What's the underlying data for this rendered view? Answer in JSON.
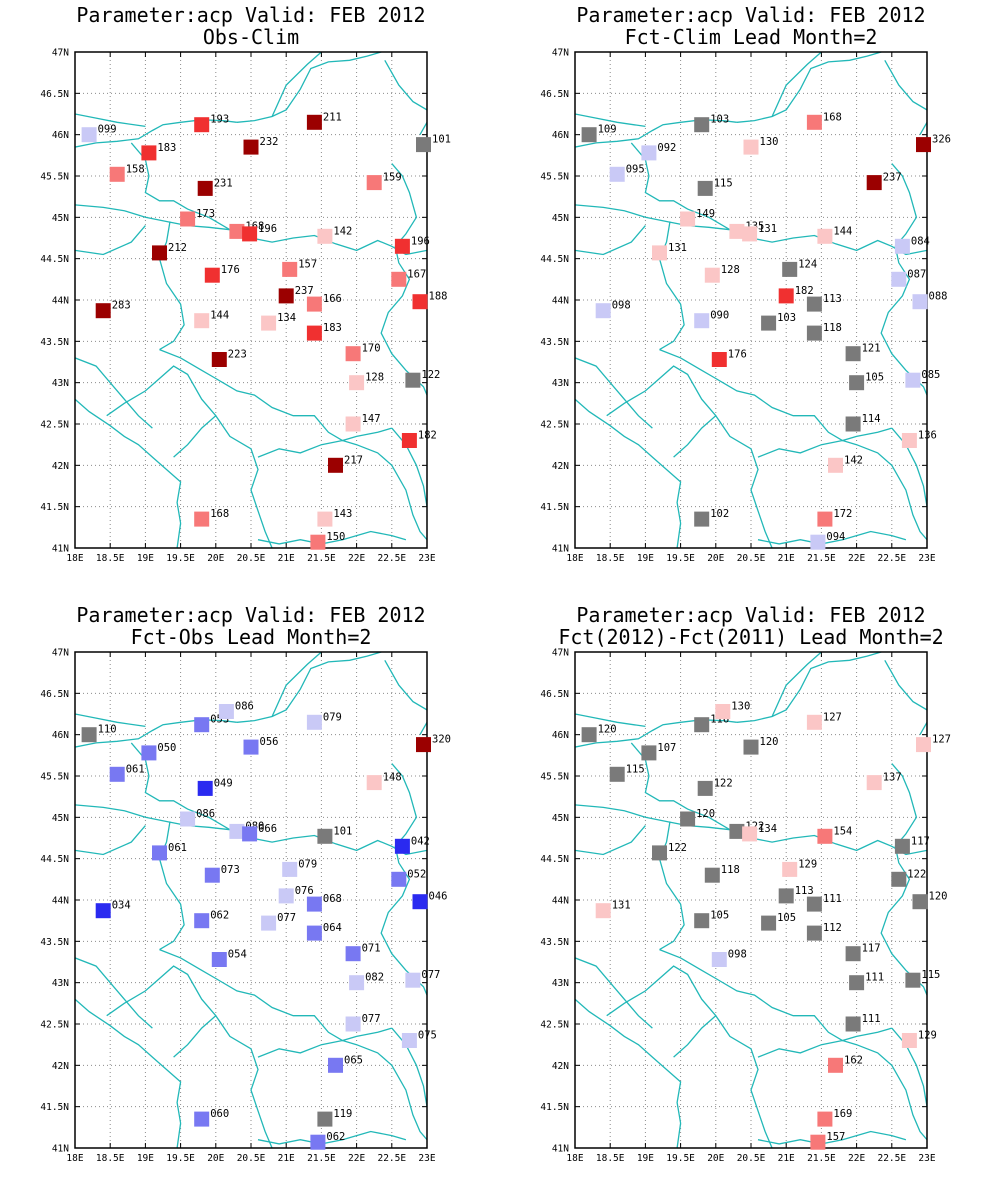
{
  "colors": {
    "coast": "#22b8b8",
    "grid": "#8c8c8c",
    "gray": "#7a7a7a",
    "dark_red": "#9b0000",
    "red": "#f03030",
    "mid_red": "#f77878",
    "light_red": "#fbc6c6",
    "light_blue": "#c9c9f6",
    "mid_blue": "#7878f2",
    "blue": "#2a2af0"
  },
  "axes": {
    "lon_ticks": [
      "18E",
      "18.5E",
      "19E",
      "19.5E",
      "20E",
      "20.5E",
      "21E",
      "21.5E",
      "22E",
      "22.5E",
      "23E"
    ],
    "lat_ticks": [
      "41N",
      "41.5N",
      "42N",
      "42.5N",
      "43N",
      "43.5N",
      "44N",
      "44.5N",
      "45N",
      "45.5N",
      "46N",
      "46.5N",
      "47N"
    ],
    "lon_range": [
      18,
      23
    ],
    "lat_range": [
      41,
      47
    ]
  },
  "panels": [
    {
      "title1": "Parameter:acp Valid: FEB 2012",
      "title2": "Obs-Clim",
      "stations": [
        {
          "lon": 18.2,
          "lat": 46.0,
          "label": "099",
          "color": "light_blue"
        },
        {
          "lon": 19.8,
          "lat": 46.12,
          "label": "193",
          "color": "red"
        },
        {
          "lon": 21.4,
          "lat": 46.15,
          "label": "211",
          "color": "dark_red"
        },
        {
          "lon": 22.95,
          "lat": 45.88,
          "label": "101",
          "color": "gray"
        },
        {
          "lon": 19.05,
          "lat": 45.78,
          "label": "183",
          "color": "red"
        },
        {
          "lon": 20.5,
          "lat": 45.85,
          "label": "232",
          "color": "dark_red"
        },
        {
          "lon": 18.6,
          "lat": 45.52,
          "label": "158",
          "color": "mid_red"
        },
        {
          "lon": 19.85,
          "lat": 45.35,
          "label": "231",
          "color": "dark_red"
        },
        {
          "lon": 22.25,
          "lat": 45.42,
          "label": "159",
          "color": "mid_red"
        },
        {
          "lon": 19.6,
          "lat": 44.98,
          "label": "173",
          "color": "mid_red"
        },
        {
          "lon": 20.3,
          "lat": 44.83,
          "label": "168",
          "color": "mid_red"
        },
        {
          "lon": 20.48,
          "lat": 44.8,
          "label": "196",
          "color": "red"
        },
        {
          "lon": 21.55,
          "lat": 44.77,
          "label": "142",
          "color": "light_red"
        },
        {
          "lon": 22.65,
          "lat": 44.65,
          "label": "196",
          "color": "red"
        },
        {
          "lon": 19.2,
          "lat": 44.57,
          "label": "212",
          "color": "dark_red"
        },
        {
          "lon": 19.95,
          "lat": 44.3,
          "label": "176",
          "color": "red"
        },
        {
          "lon": 21.05,
          "lat": 44.37,
          "label": "157",
          "color": "mid_red"
        },
        {
          "lon": 22.6,
          "lat": 44.25,
          "label": "167",
          "color": "mid_red"
        },
        {
          "lon": 21.0,
          "lat": 44.05,
          "label": "237",
          "color": "dark_red"
        },
        {
          "lon": 21.4,
          "lat": 43.95,
          "label": "166",
          "color": "mid_red"
        },
        {
          "lon": 22.9,
          "lat": 43.98,
          "label": "188",
          "color": "red"
        },
        {
          "lon": 18.4,
          "lat": 43.87,
          "label": "283",
          "color": "dark_red"
        },
        {
          "lon": 19.8,
          "lat": 43.75,
          "label": "144",
          "color": "light_red"
        },
        {
          "lon": 20.75,
          "lat": 43.72,
          "label": "134",
          "color": "light_red"
        },
        {
          "lon": 21.4,
          "lat": 43.6,
          "label": "183",
          "color": "red"
        },
        {
          "lon": 21.95,
          "lat": 43.35,
          "label": "170",
          "color": "mid_red"
        },
        {
          "lon": 20.05,
          "lat": 43.28,
          "label": "223",
          "color": "dark_red"
        },
        {
          "lon": 22.0,
          "lat": 43.0,
          "label": "128",
          "color": "light_red"
        },
        {
          "lon": 22.8,
          "lat": 43.03,
          "label": "122",
          "color": "gray"
        },
        {
          "lon": 21.95,
          "lat": 42.5,
          "label": "147",
          "color": "light_red"
        },
        {
          "lon": 22.75,
          "lat": 42.3,
          "label": "182",
          "color": "red"
        },
        {
          "lon": 21.7,
          "lat": 42.0,
          "label": "217",
          "color": "dark_red"
        },
        {
          "lon": 19.8,
          "lat": 41.35,
          "label": "168",
          "color": "mid_red"
        },
        {
          "lon": 21.55,
          "lat": 41.35,
          "label": "143",
          "color": "light_red"
        },
        {
          "lon": 21.45,
          "lat": 41.07,
          "label": "150",
          "color": "mid_red"
        }
      ]
    },
    {
      "title1": "Parameter:acp Valid: FEB 2012",
      "title2": "Fct-Clim Lead Month=2",
      "stations": [
        {
          "lon": 18.2,
          "lat": 46.0,
          "label": "109",
          "color": "gray"
        },
        {
          "lon": 19.8,
          "lat": 46.12,
          "label": "103",
          "color": "gray"
        },
        {
          "lon": 21.4,
          "lat": 46.15,
          "label": "168",
          "color": "mid_red"
        },
        {
          "lon": 22.95,
          "lat": 45.88,
          "label": "326",
          "color": "dark_red"
        },
        {
          "lon": 19.05,
          "lat": 45.78,
          "label": "092",
          "color": "light_blue"
        },
        {
          "lon": 20.5,
          "lat": 45.85,
          "label": "130",
          "color": "light_red"
        },
        {
          "lon": 18.6,
          "lat": 45.52,
          "label": "095",
          "color": "light_blue"
        },
        {
          "lon": 19.85,
          "lat": 45.35,
          "label": "115",
          "color": "gray"
        },
        {
          "lon": 22.25,
          "lat": 45.42,
          "label": "237",
          "color": "dark_red"
        },
        {
          "lon": 19.6,
          "lat": 44.98,
          "label": "149",
          "color": "light_red"
        },
        {
          "lon": 20.3,
          "lat": 44.83,
          "label": "135",
          "color": "light_red"
        },
        {
          "lon": 20.48,
          "lat": 44.8,
          "label": "131",
          "color": "light_red"
        },
        {
          "lon": 21.55,
          "lat": 44.77,
          "label": "144",
          "color": "light_red"
        },
        {
          "lon": 22.65,
          "lat": 44.65,
          "label": "084",
          "color": "light_blue"
        },
        {
          "lon": 19.2,
          "lat": 44.57,
          "label": "131",
          "color": "light_red"
        },
        {
          "lon": 19.95,
          "lat": 44.3,
          "label": "128",
          "color": "light_red"
        },
        {
          "lon": 21.05,
          "lat": 44.37,
          "label": "124",
          "color": "gray"
        },
        {
          "lon": 22.6,
          "lat": 44.25,
          "label": "087",
          "color": "light_blue"
        },
        {
          "lon": 21.0,
          "lat": 44.05,
          "label": "182",
          "color": "red"
        },
        {
          "lon": 21.4,
          "lat": 43.95,
          "label": "113",
          "color": "gray"
        },
        {
          "lon": 22.9,
          "lat": 43.98,
          "label": "088",
          "color": "light_blue"
        },
        {
          "lon": 18.4,
          "lat": 43.87,
          "label": "098",
          "color": "light_blue"
        },
        {
          "lon": 19.8,
          "lat": 43.75,
          "label": "090",
          "color": "light_blue"
        },
        {
          "lon": 20.75,
          "lat": 43.72,
          "label": "103",
          "color": "gray"
        },
        {
          "lon": 21.4,
          "lat": 43.6,
          "label": "118",
          "color": "gray"
        },
        {
          "lon": 21.95,
          "lat": 43.35,
          "label": "121",
          "color": "gray"
        },
        {
          "lon": 20.05,
          "lat": 43.28,
          "label": "176",
          "color": "red"
        },
        {
          "lon": 22.0,
          "lat": 43.0,
          "label": "105",
          "color": "gray"
        },
        {
          "lon": 22.8,
          "lat": 43.03,
          "label": "085",
          "color": "light_blue"
        },
        {
          "lon": 21.95,
          "lat": 42.5,
          "label": "114",
          "color": "gray"
        },
        {
          "lon": 22.75,
          "lat": 42.3,
          "label": "136",
          "color": "light_red"
        },
        {
          "lon": 21.7,
          "lat": 42.0,
          "label": "142",
          "color": "light_red"
        },
        {
          "lon": 19.8,
          "lat": 41.35,
          "label": "102",
          "color": "gray"
        },
        {
          "lon": 21.55,
          "lat": 41.35,
          "label": "172",
          "color": "mid_red"
        },
        {
          "lon": 21.45,
          "lat": 41.07,
          "label": "094",
          "color": "light_blue"
        }
      ]
    },
    {
      "title1": "Parameter:acp Valid: FEB 2012",
      "title2": "Fct-Obs Lead Month=2",
      "stations": [
        {
          "lon": 18.2,
          "lat": 46.0,
          "label": "110",
          "color": "gray"
        },
        {
          "lon": 19.8,
          "lat": 46.12,
          "label": "053",
          "color": "mid_blue"
        },
        {
          "lon": 20.15,
          "lat": 46.28,
          "label": "086",
          "color": "light_blue"
        },
        {
          "lon": 21.4,
          "lat": 46.15,
          "label": "079",
          "color": "light_blue"
        },
        {
          "lon": 22.95,
          "lat": 45.88,
          "label": "320",
          "color": "dark_red"
        },
        {
          "lon": 19.05,
          "lat": 45.78,
          "label": "050",
          "color": "mid_blue"
        },
        {
          "lon": 20.5,
          "lat": 45.85,
          "label": "056",
          "color": "mid_blue"
        },
        {
          "lon": 18.6,
          "lat": 45.52,
          "label": "061",
          "color": "mid_blue"
        },
        {
          "lon": 19.85,
          "lat": 45.35,
          "label": "049",
          "color": "blue"
        },
        {
          "lon": 22.25,
          "lat": 45.42,
          "label": "148",
          "color": "light_red"
        },
        {
          "lon": 19.6,
          "lat": 44.98,
          "label": "086",
          "color": "light_blue"
        },
        {
          "lon": 20.3,
          "lat": 44.83,
          "label": "080",
          "color": "light_blue"
        },
        {
          "lon": 20.48,
          "lat": 44.8,
          "label": "066",
          "color": "mid_blue"
        },
        {
          "lon": 21.55,
          "lat": 44.77,
          "label": "101",
          "color": "gray"
        },
        {
          "lon": 22.65,
          "lat": 44.65,
          "label": "042",
          "color": "blue"
        },
        {
          "lon": 19.2,
          "lat": 44.57,
          "label": "061",
          "color": "mid_blue"
        },
        {
          "lon": 19.95,
          "lat": 44.3,
          "label": "073",
          "color": "mid_blue"
        },
        {
          "lon": 21.05,
          "lat": 44.37,
          "label": "079",
          "color": "light_blue"
        },
        {
          "lon": 22.6,
          "lat": 44.25,
          "label": "052",
          "color": "mid_blue"
        },
        {
          "lon": 21.0,
          "lat": 44.05,
          "label": "076",
          "color": "light_blue"
        },
        {
          "lon": 21.4,
          "lat": 43.95,
          "label": "068",
          "color": "mid_blue"
        },
        {
          "lon": 22.9,
          "lat": 43.98,
          "label": "046",
          "color": "blue"
        },
        {
          "lon": 18.4,
          "lat": 43.87,
          "label": "034",
          "color": "blue"
        },
        {
          "lon": 19.8,
          "lat": 43.75,
          "label": "062",
          "color": "mid_blue"
        },
        {
          "lon": 20.75,
          "lat": 43.72,
          "label": "077",
          "color": "light_blue"
        },
        {
          "lon": 21.4,
          "lat": 43.6,
          "label": "064",
          "color": "mid_blue"
        },
        {
          "lon": 21.95,
          "lat": 43.35,
          "label": "071",
          "color": "mid_blue"
        },
        {
          "lon": 20.05,
          "lat": 43.28,
          "label": "054",
          "color": "mid_blue"
        },
        {
          "lon": 22.0,
          "lat": 43.0,
          "label": "082",
          "color": "light_blue"
        },
        {
          "lon": 22.8,
          "lat": 43.03,
          "label": "077",
          "color": "light_blue"
        },
        {
          "lon": 21.95,
          "lat": 42.5,
          "label": "077",
          "color": "light_blue"
        },
        {
          "lon": 22.75,
          "lat": 42.3,
          "label": "075",
          "color": "light_blue"
        },
        {
          "lon": 21.7,
          "lat": 42.0,
          "label": "065",
          "color": "mid_blue"
        },
        {
          "lon": 19.8,
          "lat": 41.35,
          "label": "060",
          "color": "mid_blue"
        },
        {
          "lon": 21.55,
          "lat": 41.35,
          "label": "119",
          "color": "gray"
        },
        {
          "lon": 21.45,
          "lat": 41.07,
          "label": "062",
          "color": "mid_blue"
        }
      ]
    },
    {
      "title1": "Parameter:acp Valid: FEB 2012",
      "title2": "Fct(2012)-Fct(2011) Lead Month=2",
      "stations": [
        {
          "lon": 18.2,
          "lat": 46.0,
          "label": "120",
          "color": "gray"
        },
        {
          "lon": 19.8,
          "lat": 46.12,
          "label": "116",
          "color": "gray"
        },
        {
          "lon": 20.1,
          "lat": 46.28,
          "label": "130",
          "color": "light_red"
        },
        {
          "lon": 21.4,
          "lat": 46.15,
          "label": "127",
          "color": "light_red"
        },
        {
          "lon": 22.95,
          "lat": 45.88,
          "label": "127",
          "color": "light_red"
        },
        {
          "lon": 19.05,
          "lat": 45.78,
          "label": "107",
          "color": "gray"
        },
        {
          "lon": 20.5,
          "lat": 45.85,
          "label": "120",
          "color": "gray"
        },
        {
          "lon": 18.6,
          "lat": 45.52,
          "label": "115",
          "color": "gray"
        },
        {
          "lon": 19.85,
          "lat": 45.35,
          "label": "122",
          "color": "gray"
        },
        {
          "lon": 22.25,
          "lat": 45.42,
          "label": "137",
          "color": "light_red"
        },
        {
          "lon": 19.6,
          "lat": 44.98,
          "label": "120",
          "color": "gray"
        },
        {
          "lon": 20.3,
          "lat": 44.83,
          "label": "122",
          "color": "gray"
        },
        {
          "lon": 20.48,
          "lat": 44.8,
          "label": "134",
          "color": "light_red"
        },
        {
          "lon": 21.55,
          "lat": 44.77,
          "label": "154",
          "color": "mid_red"
        },
        {
          "lon": 22.65,
          "lat": 44.65,
          "label": "117",
          "color": "gray"
        },
        {
          "lon": 19.2,
          "lat": 44.57,
          "label": "122",
          "color": "gray"
        },
        {
          "lon": 19.95,
          "lat": 44.3,
          "label": "118",
          "color": "gray"
        },
        {
          "lon": 21.05,
          "lat": 44.37,
          "label": "129",
          "color": "light_red"
        },
        {
          "lon": 22.6,
          "lat": 44.25,
          "label": "122",
          "color": "gray"
        },
        {
          "lon": 21.0,
          "lat": 44.05,
          "label": "113",
          "color": "gray"
        },
        {
          "lon": 21.4,
          "lat": 43.95,
          "label": "111",
          "color": "gray"
        },
        {
          "lon": 22.9,
          "lat": 43.98,
          "label": "120",
          "color": "gray"
        },
        {
          "lon": 18.4,
          "lat": 43.87,
          "label": "131",
          "color": "light_red"
        },
        {
          "lon": 19.8,
          "lat": 43.75,
          "label": "105",
          "color": "gray"
        },
        {
          "lon": 20.75,
          "lat": 43.72,
          "label": "105",
          "color": "gray"
        },
        {
          "lon": 21.4,
          "lat": 43.6,
          "label": "112",
          "color": "gray"
        },
        {
          "lon": 21.95,
          "lat": 43.35,
          "label": "117",
          "color": "gray"
        },
        {
          "lon": 20.05,
          "lat": 43.28,
          "label": "098",
          "color": "light_blue"
        },
        {
          "lon": 22.0,
          "lat": 43.0,
          "label": "111",
          "color": "gray"
        },
        {
          "lon": 22.8,
          "lat": 43.03,
          "label": "115",
          "color": "gray"
        },
        {
          "lon": 21.95,
          "lat": 42.5,
          "label": "111",
          "color": "gray"
        },
        {
          "lon": 22.75,
          "lat": 42.3,
          "label": "129",
          "color": "light_red"
        },
        {
          "lon": 21.7,
          "lat": 42.0,
          "label": "162",
          "color": "mid_red"
        },
        {
          "lon": 21.55,
          "lat": 41.35,
          "label": "169",
          "color": "mid_red"
        },
        {
          "lon": 21.45,
          "lat": 41.07,
          "label": "157",
          "color": "mid_red"
        }
      ]
    }
  ]
}
